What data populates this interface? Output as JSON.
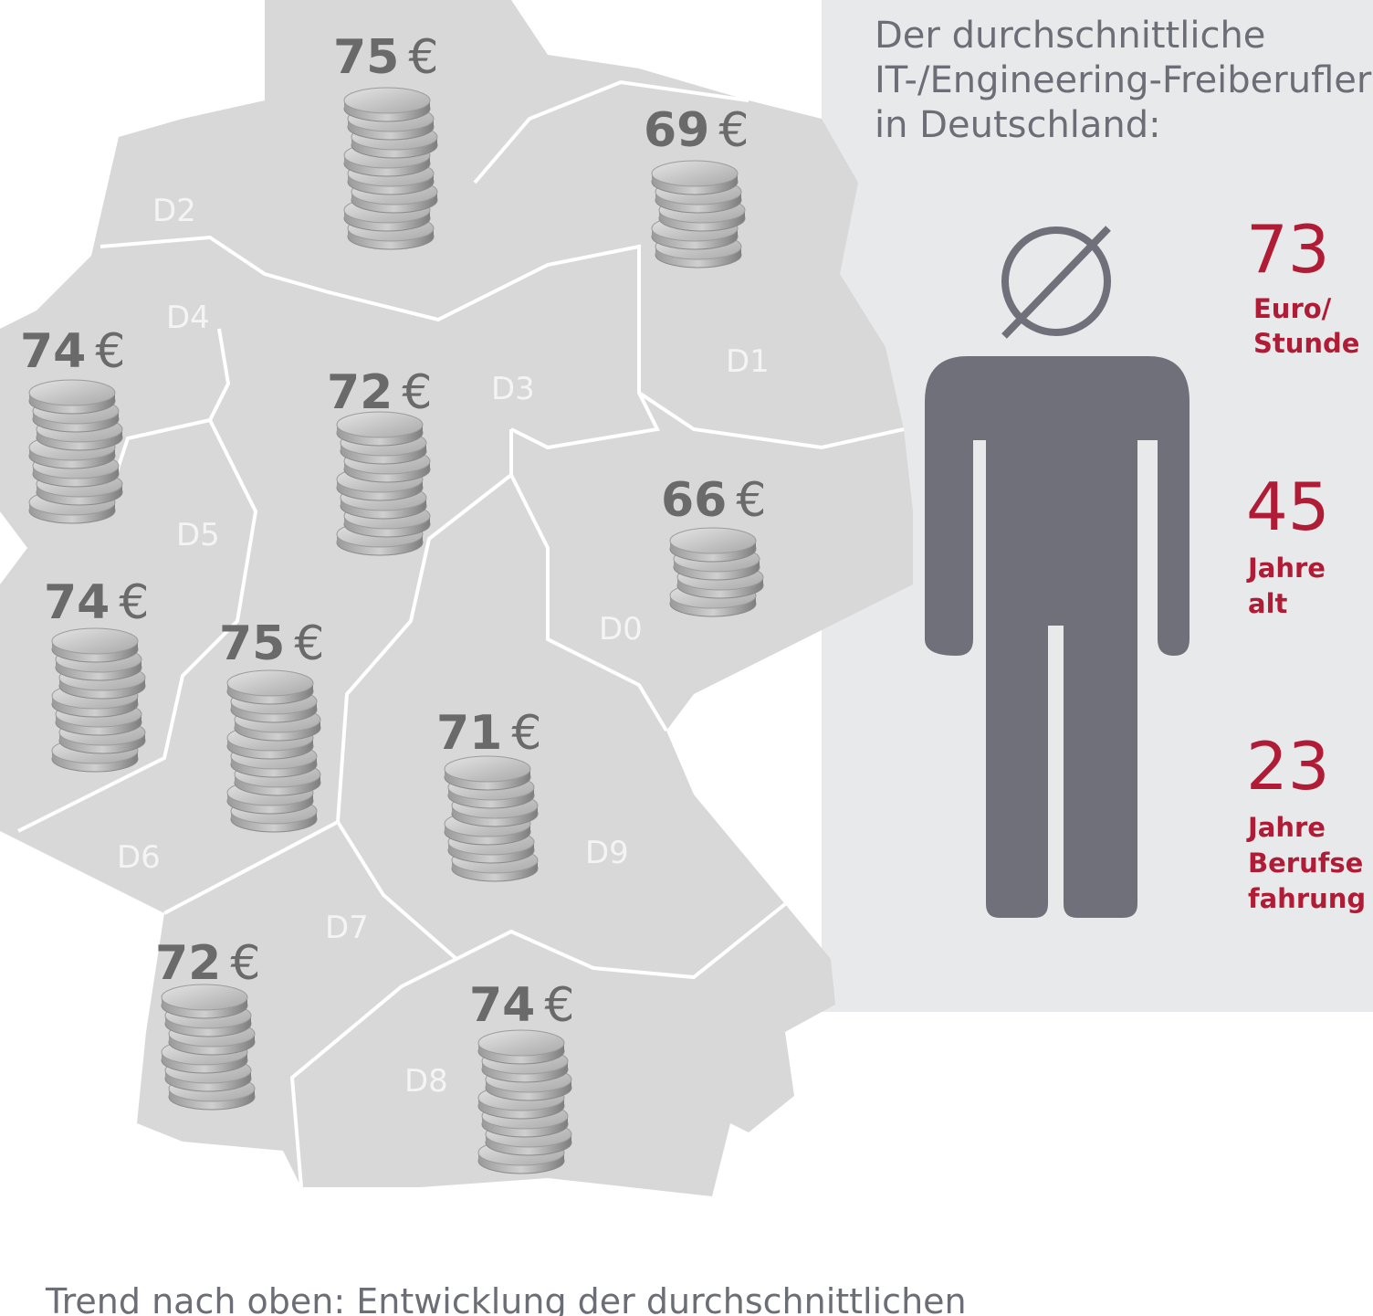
{
  "panel": {
    "title_lines": [
      "Der durchschnittliche",
      "IT-/Engineering-Freiberufler",
      "in Deutschland:"
    ],
    "stats": [
      {
        "number": "73",
        "lines": [
          "Euro/",
          "Stunde"
        ]
      },
      {
        "number": "45",
        "lines": [
          "Jahre",
          "alt"
        ]
      },
      {
        "number": "23",
        "lines": [
          "Jahre",
          "Berufse",
          "fahrung"
        ]
      }
    ]
  },
  "map": {
    "currency": "€",
    "region_labels": [
      "D2",
      "D4",
      "D1",
      "D3",
      "D5",
      "D0",
      "D6",
      "D9",
      "D7",
      "D8"
    ],
    "rates": [
      75,
      69,
      74,
      72,
      66,
      74,
      75,
      71,
      72,
      74
    ]
  },
  "caption": "Trend nach oben: Entwicklung der durchschnittlichen"
}
